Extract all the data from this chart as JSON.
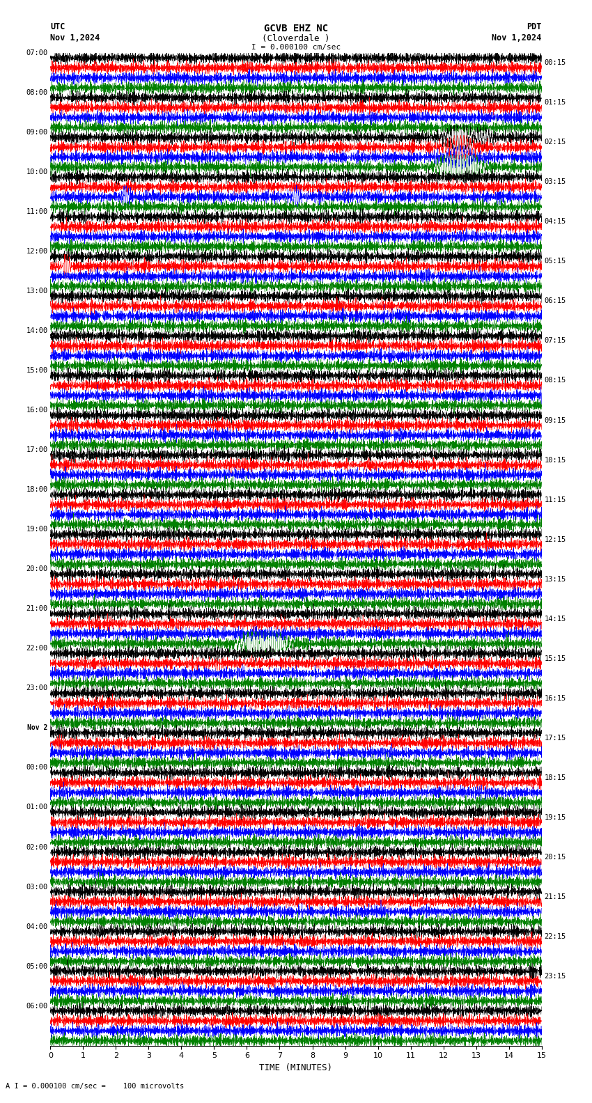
{
  "title_line1": "GCVB EHZ NC",
  "title_line2": "(Cloverdale )",
  "scale_label": "I = 0.000100 cm/sec",
  "left_label_line1": "UTC",
  "left_label_line2": "Nov 1,2024",
  "right_label_line1": "PDT",
  "right_label_line2": "Nov 1,2024",
  "bottom_xlabel": "TIME (MINUTES)",
  "bottom_note": "A I = 0.000100 cm/sec =    100 microvolts",
  "utc_times": [
    "07:00",
    "08:00",
    "09:00",
    "10:00",
    "11:00",
    "12:00",
    "13:00",
    "14:00",
    "15:00",
    "16:00",
    "17:00",
    "18:00",
    "19:00",
    "20:00",
    "21:00",
    "22:00",
    "23:00",
    "Nov 2",
    "00:00",
    "01:00",
    "02:00",
    "03:00",
    "04:00",
    "05:00",
    "06:00"
  ],
  "pdt_times": [
    "00:15",
    "01:15",
    "02:15",
    "03:15",
    "04:15",
    "05:15",
    "06:15",
    "07:15",
    "08:15",
    "09:15",
    "10:15",
    "11:15",
    "12:15",
    "13:15",
    "14:15",
    "15:15",
    "16:15",
    "17:15",
    "18:15",
    "19:15",
    "20:15",
    "21:15",
    "22:15",
    "23:15"
  ],
  "trace_colors": [
    "black",
    "red",
    "blue",
    "green"
  ],
  "bg_color": "white",
  "n_rows": 25,
  "traces_per_row": 4,
  "xlim": [
    0,
    15
  ],
  "xticks": [
    0,
    1,
    2,
    3,
    4,
    5,
    6,
    7,
    8,
    9,
    10,
    11,
    12,
    13,
    14,
    15
  ],
  "noise_amp": 0.28,
  "lf_amp": 0.08
}
